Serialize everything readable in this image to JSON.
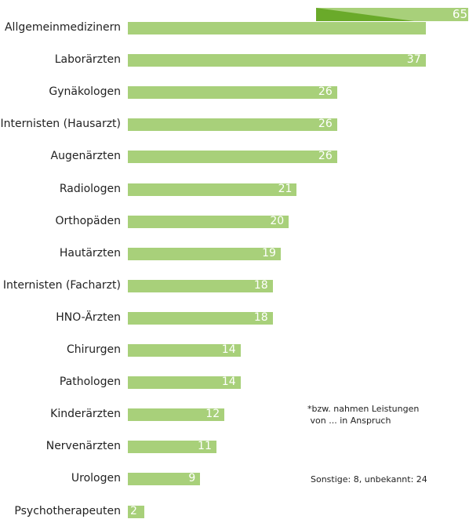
{
  "chart_data": {
    "type": "bar",
    "orientation": "horizontal",
    "categories": [
      "Allgemeinmedizinern",
      "Laborärzten",
      "Gynäkologen",
      "Internisten (Hausarzt)",
      "Augenärzten",
      "Radiologen",
      "Orthopäden",
      "Hautärzten",
      "Internisten (Facharzt)",
      "HNO-Ärzten",
      "Chirurgen",
      "Pathologen",
      "Kinderärzten",
      "Nervenärzten",
      "Urologen",
      "Psychotherapeuten"
    ],
    "values": [
      65,
      37,
      26,
      26,
      26,
      21,
      20,
      19,
      18,
      18,
      14,
      14,
      12,
      11,
      9,
      2
    ],
    "xlim": [
      0,
      65
    ],
    "notes": [
      "*bzw. nahmen Leistungen\n von ... in Anspruch",
      "Sonstige: 8, unbekannt: 24"
    ]
  },
  "colors": {
    "bar": "#a8d07a",
    "bar_accent": "#6aaa2a",
    "value_text": "#ffffff",
    "label_text": "#222222"
  }
}
